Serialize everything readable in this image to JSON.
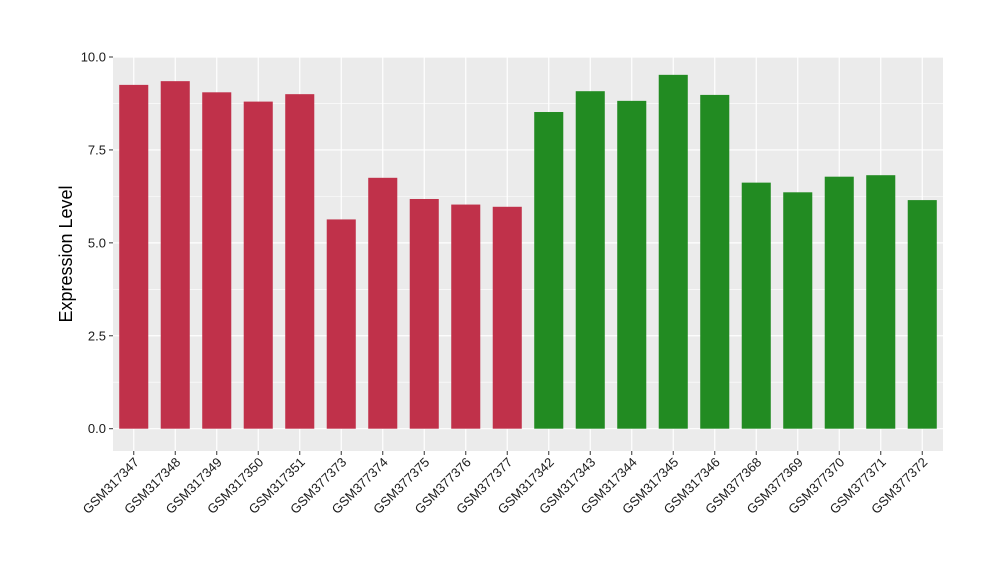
{
  "chart_data": {
    "type": "bar",
    "title": "",
    "xlabel": "",
    "ylabel": "Expression Level",
    "ylim": [
      -0.6,
      10.0
    ],
    "yticks": [
      0.0,
      2.5,
      5.0,
      7.5,
      10.0
    ],
    "ytick_labels": [
      "0.0",
      "2.5",
      "5.0",
      "7.5",
      "10.0"
    ],
    "grid": true,
    "legend": "none",
    "categories": [
      "GSM317347",
      "GSM317348",
      "GSM317349",
      "GSM317350",
      "GSM317351",
      "GSM377373",
      "GSM377374",
      "GSM377375",
      "GSM377376",
      "GSM377377",
      "GSM317342",
      "GSM317343",
      "GSM317344",
      "GSM317345",
      "GSM317346",
      "GSM377368",
      "GSM377369",
      "GSM377370",
      "GSM377371",
      "GSM377372"
    ],
    "values": [
      9.25,
      9.35,
      9.05,
      8.8,
      9.0,
      5.63,
      6.75,
      6.18,
      6.03,
      5.97,
      8.52,
      9.08,
      8.82,
      9.52,
      8.98,
      6.62,
      6.36,
      6.78,
      6.82,
      6.15
    ],
    "bar_colors": [
      "#c0314a",
      "#c0314a",
      "#c0314a",
      "#c0314a",
      "#c0314a",
      "#c0314a",
      "#c0314a",
      "#c0314a",
      "#c0314a",
      "#c0314a",
      "#228b22",
      "#228b22",
      "#228b22",
      "#228b22",
      "#228b22",
      "#228b22",
      "#228b22",
      "#228b22",
      "#228b22",
      "#228b22"
    ],
    "panel_background": "#ebebeb",
    "grid_color": "#ffffff"
  }
}
